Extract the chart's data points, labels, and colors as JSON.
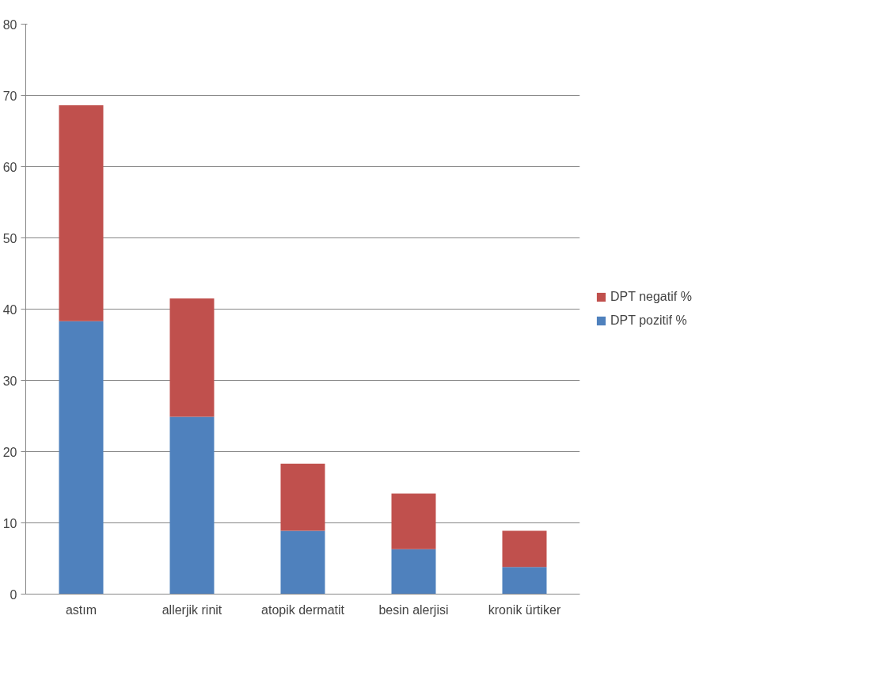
{
  "chart_data": {
    "type": "bar",
    "stacked": true,
    "categories": [
      "astım",
      "allerjik rinit",
      "atopik dermatit",
      "besin alerjisi",
      "kronik ürtiker"
    ],
    "series": [
      {
        "name": "DPT pozitif %",
        "color": "#4f81bd",
        "values": [
          38.3,
          24.9,
          8.9,
          6.3,
          3.8
        ]
      },
      {
        "name": "DPT negatif %",
        "color": "#c0504d",
        "values": [
          30.3,
          16.6,
          9.4,
          7.8,
          5.1
        ]
      }
    ],
    "ylim": [
      0,
      80
    ],
    "yticks": [
      0,
      10,
      20,
      30,
      40,
      50,
      60,
      70,
      80
    ],
    "grid": "y",
    "legend": "right"
  }
}
